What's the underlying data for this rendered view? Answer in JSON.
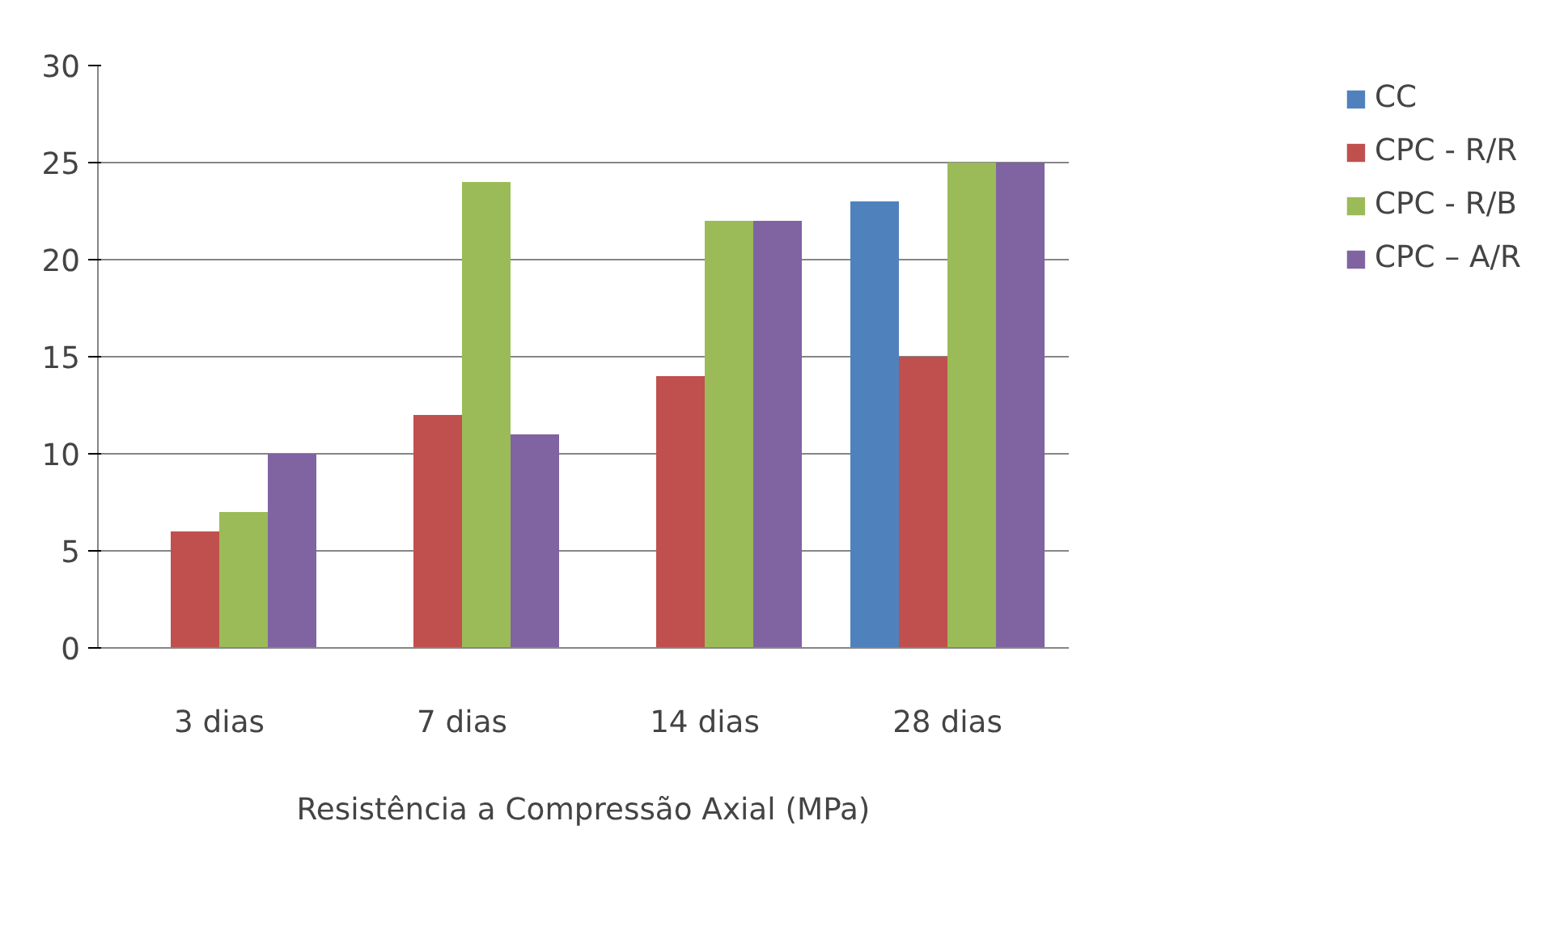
{
  "chart_data": {
    "type": "bar",
    "xlabel": "Resistência a Compressão Axial (MPa)",
    "categories": [
      "3 dias",
      "7 dias",
      "14 dias",
      "28 dias"
    ],
    "series": [
      {
        "name": "CC",
        "color": "#4f81bd",
        "values": [
          null,
          null,
          null,
          23
        ]
      },
      {
        "name": "CPC - R/R",
        "color": "#c0504d",
        "values": [
          6,
          12,
          14,
          15
        ]
      },
      {
        "name": "CPC - R/B",
        "color": "#9bbb59",
        "values": [
          7,
          24,
          22,
          25
        ]
      },
      {
        "name": "CPC – A/R",
        "color": "#8064a2",
        "values": [
          10,
          11,
          22,
          25
        ]
      }
    ],
    "ylim": [
      0,
      30
    ],
    "yticks": [
      0,
      5,
      10,
      15,
      20,
      25,
      30
    ],
    "grid": "y",
    "legend": "right"
  }
}
